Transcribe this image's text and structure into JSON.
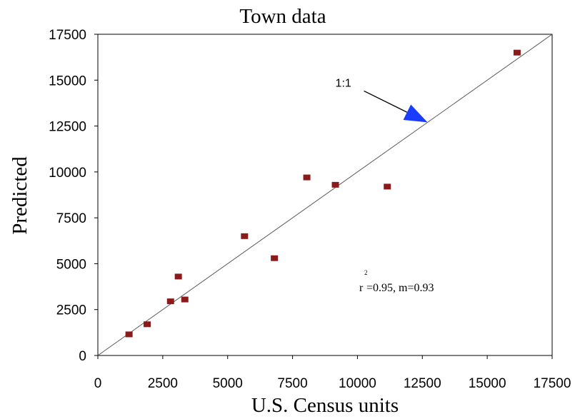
{
  "chart_data": {
    "type": "scatter",
    "title": "Town data",
    "xlabel": "U.S. Census units",
    "ylabel": "Predicted",
    "xlim": [
      0,
      17500
    ],
    "ylim": [
      0,
      17500
    ],
    "xticks": [
      "0",
      "2500",
      "5000",
      "7500",
      "10000",
      "12500",
      "15000",
      "17500"
    ],
    "yticks": [
      "0",
      "2500",
      "5000",
      "7500",
      "10000",
      "12500",
      "15000",
      "17500"
    ],
    "grid": false,
    "points": [
      {
        "x": 1200,
        "y": 1150
      },
      {
        "x": 1900,
        "y": 1700
      },
      {
        "x": 2800,
        "y": 2950
      },
      {
        "x": 3100,
        "y": 4300
      },
      {
        "x": 3350,
        "y": 3050
      },
      {
        "x": 5650,
        "y": 6500
      },
      {
        "x": 6800,
        "y": 5300
      },
      {
        "x": 8050,
        "y": 9700
      },
      {
        "x": 9150,
        "y": 9300
      },
      {
        "x": 11150,
        "y": 9200
      },
      {
        "x": 16150,
        "y": 16500
      }
    ],
    "marker_color": "#8b1a1a",
    "reference_line": {
      "label": "1:1",
      "slope": 1,
      "intercept": 0,
      "color": "#5a5a5a"
    },
    "annotation": {
      "text": "1:1",
      "arrow_color": "#1a3cff",
      "arrow_target": {
        "x": 12700,
        "y": 12700
      }
    },
    "stats": {
      "r_symbol": "r",
      "r_exponent": "2",
      "text": "=0.95, m=0.93"
    }
  }
}
